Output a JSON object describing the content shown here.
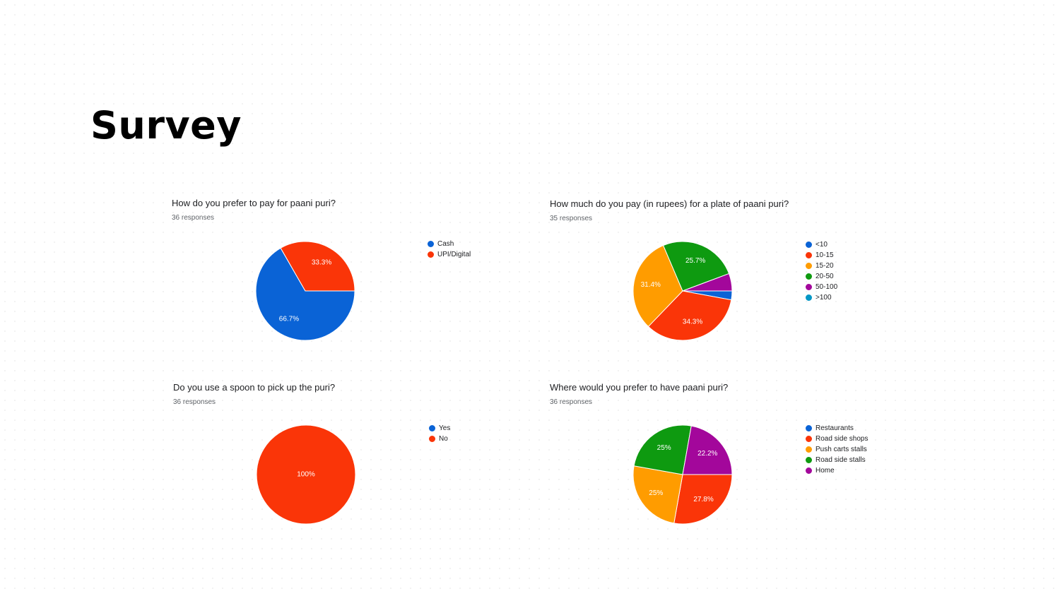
{
  "page": {
    "title": "Survey"
  },
  "charts": [
    {
      "question": "How do you prefer to pay for paani puri?",
      "responses": "36 responses",
      "chart_data": {
        "type": "pie",
        "title": "How do you prefer to pay for paani puri?",
        "categories": [
          "Cash",
          "UPI/Digital"
        ],
        "values": [
          66.7,
          33.3
        ],
        "labels": [
          "66.7%",
          "33.3%"
        ],
        "colors": [
          "#0a63d6",
          "#fa3508"
        ],
        "legend_placement": "right"
      }
    },
    {
      "question": "How much do you pay (in rupees) for a plate of paani puri?",
      "responses": "35 responses",
      "chart_data": {
        "type": "pie",
        "title": "How much do you pay (in rupees) for a plate of paani puri?",
        "categories": [
          "<10",
          "10-15",
          "15-20",
          "20-50",
          "50-100",
          ">100"
        ],
        "values": [
          2.9,
          34.3,
          31.4,
          25.7,
          5.7,
          0
        ],
        "labels": [
          "",
          "34.3%",
          "31.4%",
          "25.7%",
          "",
          ""
        ],
        "colors": [
          "#0a63d6",
          "#fa3508",
          "#ff9c00",
          "#0e9a10",
          "#a3079b",
          "#0597c6"
        ],
        "legend_placement": "right"
      }
    },
    {
      "question": "Do you use a spoon to pick up the puri?",
      "responses": "36 responses",
      "chart_data": {
        "type": "pie",
        "title": "Do you use a spoon to pick up the puri?",
        "categories": [
          "Yes",
          "No"
        ],
        "values": [
          0,
          100
        ],
        "labels": [
          "",
          "100%"
        ],
        "colors": [
          "#0a63d6",
          "#fa3508"
        ],
        "legend_placement": "right"
      }
    },
    {
      "question": "Where would you prefer to have paani puri?",
      "responses": "36 responses",
      "chart_data": {
        "type": "pie",
        "title": "Where would you prefer to have paani puri?",
        "categories": [
          "Restaurants",
          "Road side shops",
          "Push carts stalls",
          "Road side stalls",
          "Home"
        ],
        "values": [
          0,
          27.8,
          25,
          25,
          22.2
        ],
        "labels": [
          "",
          "27.8%",
          "25%",
          "25%",
          "22.2%"
        ],
        "colors": [
          "#0a63d6",
          "#fa3508",
          "#ff9c00",
          "#0e9a10",
          "#a3079b"
        ],
        "legend_placement": "right"
      }
    }
  ]
}
